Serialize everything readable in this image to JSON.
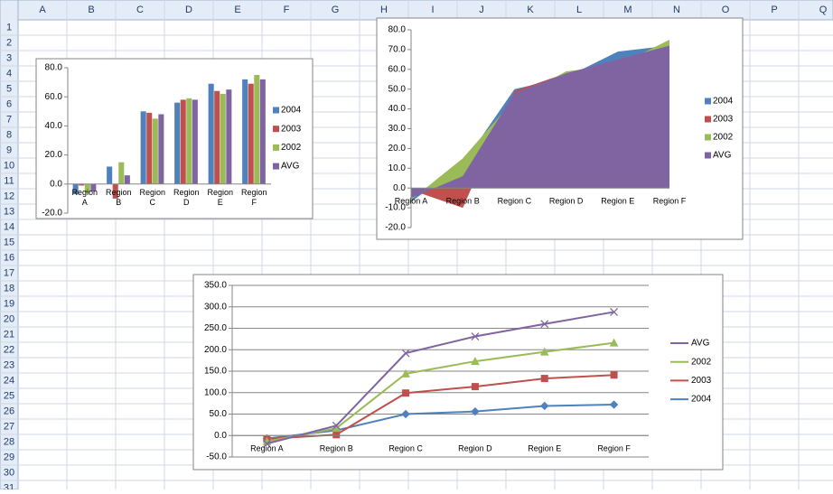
{
  "spreadsheet": {
    "columns": [
      "A",
      "B",
      "C",
      "D",
      "E",
      "F",
      "G",
      "H",
      "I",
      "J",
      "K",
      "L",
      "M",
      "N",
      "O",
      "P",
      "Q"
    ],
    "rows": [
      1,
      2,
      3,
      4,
      5,
      6,
      7,
      8,
      9,
      10,
      11,
      12,
      13,
      14,
      15,
      16,
      17,
      18,
      19,
      20,
      21,
      22,
      23,
      24,
      25,
      26,
      27,
      28,
      29,
      30,
      31
    ]
  },
  "chart_data": [
    {
      "type": "bar",
      "categories": [
        "Region A",
        "Region B",
        "Region C",
        "Region D",
        "Region E",
        "Region F"
      ],
      "series": [
        {
          "name": "2004",
          "color": "#4f81bd",
          "values": [
            -7,
            12,
            50,
            56,
            69,
            72
          ]
        },
        {
          "name": "2003",
          "color": "#c0504d",
          "values": [
            -1,
            -10,
            49,
            58,
            64,
            69
          ]
        },
        {
          "name": "2002",
          "color": "#9bbb59",
          "values": [
            -6,
            15,
            45,
            59,
            62,
            75
          ]
        },
        {
          "name": "AVG",
          "color": "#8064a2",
          "values": [
            -5,
            6,
            48,
            58,
            65,
            72
          ]
        }
      ],
      "ylim": [
        -20,
        80
      ],
      "yticks": [
        {
          "value": -20,
          "label": "-20.0"
        },
        {
          "value": 0,
          "label": "0.0"
        },
        {
          "value": 20,
          "label": "20.0"
        },
        {
          "value": 40,
          "label": "40.0"
        },
        {
          "value": 60,
          "label": "60.0"
        },
        {
          "value": 80,
          "label": "80.0"
        }
      ],
      "grid": false
    },
    {
      "type": "area",
      "categories": [
        "Region A",
        "Region B",
        "Region C",
        "Region D",
        "Region E",
        "Region F"
      ],
      "series": [
        {
          "name": "2004",
          "color": "#4f81bd",
          "values": [
            -7,
            12,
            50,
            56,
            69,
            72
          ]
        },
        {
          "name": "2003",
          "color": "#c0504d",
          "values": [
            -1,
            -10,
            49,
            58,
            64,
            69
          ]
        },
        {
          "name": "2002",
          "color": "#9bbb59",
          "values": [
            -6,
            15,
            45,
            59,
            62,
            75
          ]
        },
        {
          "name": "AVG",
          "color": "#8064a2",
          "values": [
            -5,
            6,
            48,
            58,
            65,
            72
          ]
        }
      ],
      "ylim": [
        -20,
        80
      ],
      "yticks": [
        {
          "value": -20,
          "label": "-20.0"
        },
        {
          "value": -10,
          "label": "-10.0"
        },
        {
          "value": 0,
          "label": "0.0"
        },
        {
          "value": 10,
          "label": "10.0"
        },
        {
          "value": 20,
          "label": "20.0"
        },
        {
          "value": 30,
          "label": "30.0"
        },
        {
          "value": 40,
          "label": "40.0"
        },
        {
          "value": 50,
          "label": "50.0"
        },
        {
          "value": 60,
          "label": "60.0"
        },
        {
          "value": 70,
          "label": "70.0"
        },
        {
          "value": 80,
          "label": "80.0"
        }
      ],
      "grid": false
    },
    {
      "type": "line",
      "stacked": true,
      "legend_reversed": true,
      "categories": [
        "Region A",
        "Region B",
        "Region C",
        "Region D",
        "Region E",
        "Region F"
      ],
      "series": [
        {
          "name": "2004",
          "color": "#4f81bd",
          "marker": "diamond",
          "values": [
            -7,
            12,
            50,
            56,
            69,
            72
          ]
        },
        {
          "name": "2003",
          "color": "#c0504d",
          "marker": "square",
          "values": [
            -1,
            -10,
            49,
            58,
            64,
            69
          ]
        },
        {
          "name": "2002",
          "color": "#9bbb59",
          "marker": "triangle",
          "values": [
            -6,
            15,
            45,
            59,
            62,
            75
          ]
        },
        {
          "name": "AVG",
          "color": "#8064a2",
          "marker": "x",
          "values": [
            -5,
            6,
            48,
            58,
            65,
            72
          ]
        }
      ],
      "ylim": [
        -50,
        350
      ],
      "yticks": [
        {
          "value": -50,
          "label": "-50.0"
        },
        {
          "value": 0,
          "label": "0.0"
        },
        {
          "value": 50,
          "label": "50.0"
        },
        {
          "value": 100,
          "label": "100.0"
        },
        {
          "value": 150,
          "label": "150.0"
        },
        {
          "value": 200,
          "label": "200.0"
        },
        {
          "value": 250,
          "label": "250.0"
        },
        {
          "value": 300,
          "label": "300.0"
        },
        {
          "value": 350,
          "label": "350.0"
        }
      ],
      "grid": true
    }
  ]
}
